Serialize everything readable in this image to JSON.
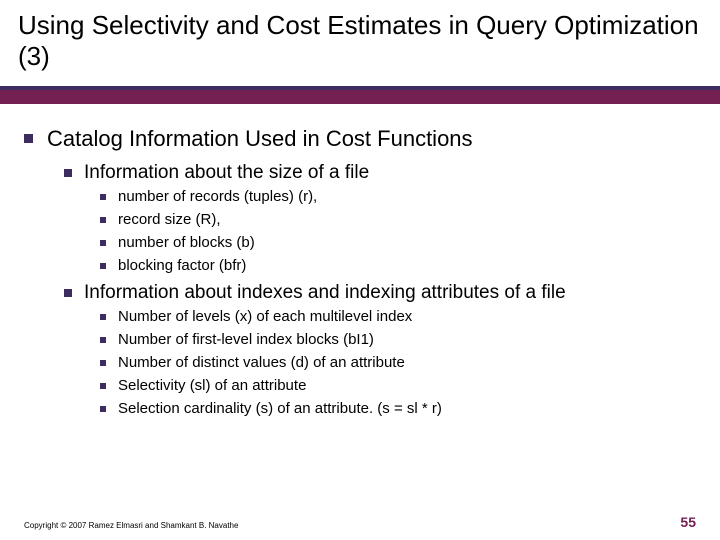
{
  "colors": {
    "bullet": "#3d2c5f",
    "accent_bar": "#742052",
    "title_underline": "#3d2c5f",
    "pagenum": "#742052"
  },
  "title": "Using Selectivity and Cost Estimates in Query Optimization (3)",
  "lvl1": {
    "text": "Catalog Information Used in Cost Functions",
    "children": [
      {
        "text": "Information about the size of a file",
        "children": [
          {
            "text": "number of records (tuples) (r),"
          },
          {
            "text": "record size (R),"
          },
          {
            "text": "number of blocks (b)"
          },
          {
            "text": "blocking factor (bfr)"
          }
        ]
      },
      {
        "text": "Information about indexes and indexing attributes of a file",
        "children": [
          {
            "text": "Number of levels (x) of each multilevel index"
          },
          {
            "text": "Number of first-level index blocks (bI1)"
          },
          {
            "text": "Number of distinct values (d) of an attribute"
          },
          {
            "text": "Selectivity (sl) of an attribute"
          },
          {
            "text": "Selection cardinality (s) of an attribute. (s = sl * r)"
          }
        ]
      }
    ]
  },
  "copyright": "Copyright © 2007 Ramez Elmasri and Shamkant B. Navathe",
  "pagenum": "55"
}
